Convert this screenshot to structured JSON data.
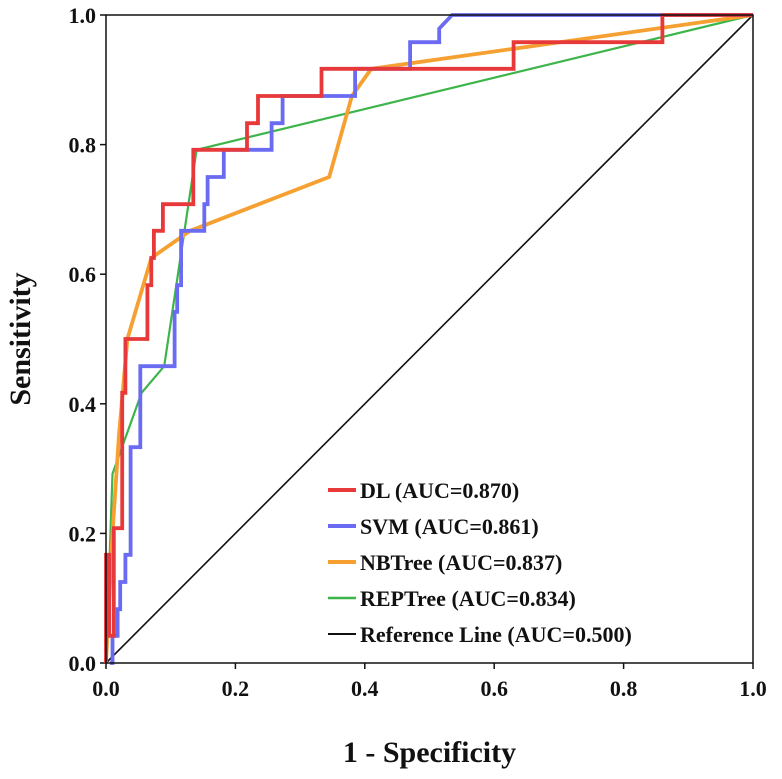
{
  "chart_data": {
    "type": "line",
    "title": "",
    "xlabel": "1 - Specificity",
    "ylabel": "Sensitivity",
    "xlim": [
      0,
      1
    ],
    "ylim": [
      0,
      1
    ],
    "x_ticks": [
      "0.0",
      "0.2",
      "0.4",
      "0.6",
      "0.8",
      "1.0"
    ],
    "y_ticks": [
      "0.0",
      "0.2",
      "0.4",
      "0.6",
      "0.8",
      "1.0"
    ],
    "grid": false,
    "legend_position": "bottom-right",
    "series": [
      {
        "name": "DL (AUC=0.870)",
        "color": "#e8393a",
        "points": [
          [
            0,
            0
          ],
          [
            0,
            0.167
          ],
          [
            0.005,
            0.167
          ],
          [
            0.005,
            0.042
          ],
          [
            0.012,
            0.042
          ],
          [
            0.012,
            0.208
          ],
          [
            0.025,
            0.208
          ],
          [
            0.025,
            0.417
          ],
          [
            0.03,
            0.417
          ],
          [
            0.03,
            0.5
          ],
          [
            0.046,
            0.5
          ],
          [
            0.064,
            0.5
          ],
          [
            0.064,
            0.583
          ],
          [
            0.07,
            0.583
          ],
          [
            0.07,
            0.625
          ],
          [
            0.074,
            0.625
          ],
          [
            0.074,
            0.667
          ],
          [
            0.088,
            0.667
          ],
          [
            0.088,
            0.708
          ],
          [
            0.135,
            0.708
          ],
          [
            0.135,
            0.792
          ],
          [
            0.218,
            0.792
          ],
          [
            0.218,
            0.833
          ],
          [
            0.235,
            0.833
          ],
          [
            0.235,
            0.875
          ],
          [
            0.333,
            0.875
          ],
          [
            0.333,
            0.917
          ],
          [
            0.63,
            0.917
          ],
          [
            0.63,
            0.958
          ],
          [
            0.86,
            0.958
          ],
          [
            0.86,
            1
          ],
          [
            1,
            1
          ]
        ]
      },
      {
        "name": "SVM (AUC=0.861)",
        "color": "#6a6af2",
        "points": [
          [
            0.006,
            0
          ],
          [
            0.01,
            0
          ],
          [
            0.01,
            0.042
          ],
          [
            0.018,
            0.042
          ],
          [
            0.018,
            0.083
          ],
          [
            0.022,
            0.083
          ],
          [
            0.022,
            0.125
          ],
          [
            0.03,
            0.125
          ],
          [
            0.03,
            0.167
          ],
          [
            0.038,
            0.167
          ],
          [
            0.038,
            0.333
          ],
          [
            0.053,
            0.333
          ],
          [
            0.053,
            0.458
          ],
          [
            0.106,
            0.458
          ],
          [
            0.106,
            0.542
          ],
          [
            0.11,
            0.542
          ],
          [
            0.11,
            0.583
          ],
          [
            0.116,
            0.583
          ],
          [
            0.116,
            0.667
          ],
          [
            0.152,
            0.667
          ],
          [
            0.152,
            0.708
          ],
          [
            0.157,
            0.708
          ],
          [
            0.157,
            0.75
          ],
          [
            0.182,
            0.75
          ],
          [
            0.182,
            0.792
          ],
          [
            0.256,
            0.792
          ],
          [
            0.256,
            0.833
          ],
          [
            0.273,
            0.833
          ],
          [
            0.273,
            0.875
          ],
          [
            0.385,
            0.875
          ],
          [
            0.385,
            0.917
          ],
          [
            0.47,
            0.917
          ],
          [
            0.47,
            0.958
          ],
          [
            0.515,
            0.958
          ],
          [
            0.515,
            0.979
          ],
          [
            0.535,
            1
          ],
          [
            1,
            1
          ]
        ]
      },
      {
        "name": "NBTree (AUC=0.837)",
        "color": "#f5a030",
        "points": [
          [
            0,
            0
          ],
          [
            0.01,
            0.2
          ],
          [
            0.02,
            0.35
          ],
          [
            0.033,
            0.5
          ],
          [
            0.07,
            0.625
          ],
          [
            0.13,
            0.667
          ],
          [
            0.345,
            0.75
          ],
          [
            0.38,
            0.875
          ],
          [
            0.41,
            0.917
          ],
          [
            1,
            1
          ]
        ]
      },
      {
        "name": "REPTree (AUC=0.834)",
        "color": "#3db54a",
        "points": [
          [
            0,
            0
          ],
          [
            0.01,
            0.292
          ],
          [
            0.055,
            0.417
          ],
          [
            0.09,
            0.458
          ],
          [
            0.14,
            0.792
          ],
          [
            1,
            1
          ]
        ]
      },
      {
        "name": "Reference Line (AUC=0.500)",
        "color": "#111111",
        "points": [
          [
            0,
            0
          ],
          [
            1,
            1
          ]
        ]
      }
    ]
  }
}
